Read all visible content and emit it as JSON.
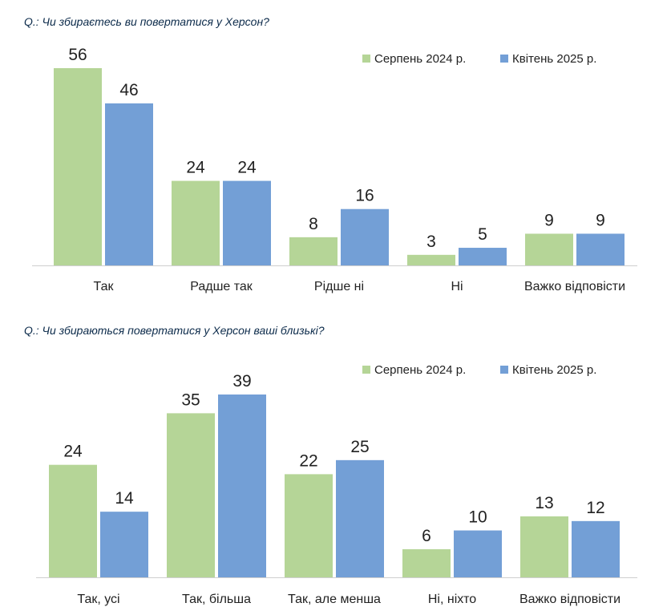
{
  "colors": {
    "aug2024": "#b5d597",
    "apr2025": "#739fd6",
    "axis": "#cfcfcf"
  },
  "chart_data": [
    {
      "type": "bar",
      "title": "Q.: Чи збираєтесь ви повертатися у Херсон?",
      "categories": [
        "Так",
        "Радше так",
        "Рідше ні",
        "Ні",
        "Важко відповісти"
      ],
      "series": [
        {
          "name": "Серпень 2024 р.",
          "values": [
            56,
            24,
            8,
            3,
            9
          ]
        },
        {
          "name": "Квітень 2025 р.",
          "values": [
            46,
            24,
            16,
            5,
            9
          ]
        }
      ],
      "ylim": [
        0,
        56
      ],
      "grid": false,
      "legend": "top-right"
    },
    {
      "type": "bar",
      "title": "Q.: Чи збираються повертатися у Херсон ваші близькі?",
      "categories": [
        "Так, усі",
        "Так, більша",
        "Так, але менша",
        "Ні, ніхто",
        "Важко відповісти"
      ],
      "series": [
        {
          "name": "Серпень 2024 р.",
          "values": [
            24,
            35,
            22,
            6,
            13
          ]
        },
        {
          "name": "Квітень 2025 р.",
          "values": [
            14,
            39,
            25,
            10,
            12
          ]
        }
      ],
      "ylim": [
        0,
        39
      ],
      "grid": false,
      "legend": "top-right"
    }
  ]
}
